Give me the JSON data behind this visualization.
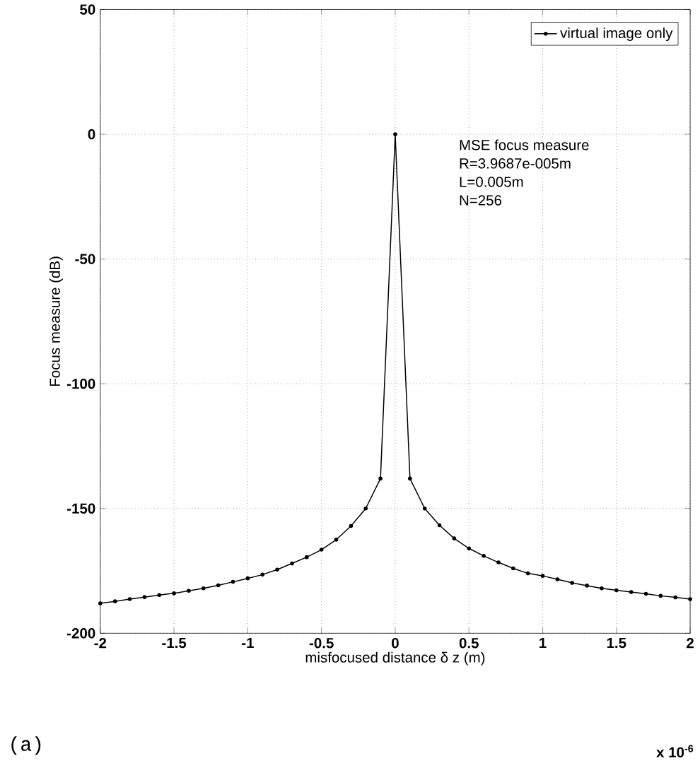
{
  "chart_data": {
    "type": "line",
    "xlabel": "misfocused distance δ z (m)",
    "ylabel": "Focus measure (dB)",
    "x": [
      -2,
      -1.9,
      -1.8,
      -1.7,
      -1.6,
      -1.5,
      -1.4,
      -1.3,
      -1.2,
      -1.1,
      -1,
      -0.9,
      -0.8,
      -0.7,
      -0.6,
      -0.5,
      -0.4,
      -0.3,
      -0.2,
      -0.1,
      0,
      0.1,
      0.2,
      0.3,
      0.4,
      0.5,
      0.6,
      0.7,
      0.8,
      0.9,
      1,
      1.1,
      1.2,
      1.3,
      1.4,
      1.5,
      1.6,
      1.7,
      1.8,
      1.9,
      2
    ],
    "series": [
      {
        "name": "virtual image only",
        "color": "#000000",
        "values": [
          -188,
          -187.2,
          -186.3,
          -185.5,
          -184.7,
          -184,
          -183,
          -182,
          -180.8,
          -179.4,
          -178,
          -176.5,
          -174.5,
          -172,
          -169.5,
          -166.5,
          -162.5,
          -157,
          -150,
          -138,
          0,
          -138,
          -150,
          -156.7,
          -162,
          -166,
          -169,
          -171.6,
          -174,
          -176,
          -177,
          -178.4,
          -179.8,
          -180.9,
          -182,
          -182.8,
          -183.5,
          -184.2,
          -185,
          -185.6,
          -186.3
        ]
      }
    ],
    "xlim": [
      -2,
      2
    ],
    "ylim": [
      -200,
      50
    ],
    "xticks": [
      -2,
      -1.5,
      -1,
      -0.5,
      0,
      0.5,
      1,
      1.5,
      2
    ],
    "yticks": [
      -200,
      -150,
      -100,
      -50,
      0,
      50
    ],
    "grid": true,
    "legend": "top right",
    "marker": "circle",
    "line_style": "solid",
    "annotations": [
      "MSE focus measure",
      "R=3.9687e-005m",
      "L=0.005m",
      "N=256",
      "(a)",
      "x 10$^{-6}$"
    ]
  }
}
